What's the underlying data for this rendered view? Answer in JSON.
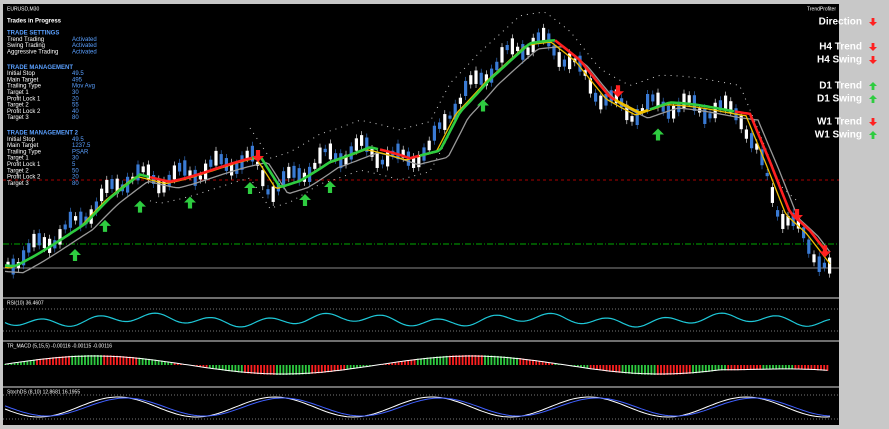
{
  "window": {
    "symbol": "EURUSD,M30",
    "indicator": "TrendProfiter"
  },
  "panel": {
    "title": "Trades in Progress",
    "sections": [
      {
        "heading": "TRADE SETTINGS",
        "rows": [
          [
            "Trend Trading",
            "Activated"
          ],
          [
            "Swing Trading",
            "Activated"
          ],
          [
            "Aggressive Trading",
            "Activated"
          ]
        ]
      },
      {
        "heading": "TRADE MANAGEMENT",
        "rows": [
          [
            "Initial Stop",
            "49.5"
          ],
          [
            "Main Target",
            "495"
          ],
          [
            "Trailing Type",
            "Mov Avg"
          ],
          [
            "Target 1",
            "30"
          ],
          [
            "Profit Lock 1",
            "20"
          ],
          [
            "Target 2",
            "55"
          ],
          [
            "Profit Lock 2",
            "40"
          ],
          [
            "Target 3",
            "80"
          ]
        ]
      },
      {
        "heading": "TRADE MANAGEMENT 2",
        "rows": [
          [
            "Initial Stop",
            "49.5"
          ],
          [
            "Main Target",
            "1237.5"
          ],
          [
            "Trailing Type",
            "PSAR"
          ],
          [
            "Target 1",
            "30"
          ],
          [
            "Profit Lock 1",
            "5"
          ],
          [
            "Target 2",
            "50"
          ],
          [
            "Profit Lock 2",
            "20"
          ],
          [
            "Target 3",
            "80"
          ]
        ]
      }
    ]
  },
  "signals": [
    {
      "label": "Direction",
      "dir": "down"
    },
    {
      "label": "H4 Trend",
      "dir": "down"
    },
    {
      "label": "H4 Swing",
      "dir": "down"
    },
    {
      "label": "D1 Trend",
      "dir": "up"
    },
    {
      "label": "D1 Swing",
      "dir": "up"
    },
    {
      "label": "W1 Trend",
      "dir": "down"
    },
    {
      "label": "W1 Swing",
      "dir": "up"
    }
  ],
  "indicators": {
    "rsi": "RSI(10) 36.4607",
    "macd": "TR_MACD (5,15,5) -0.00116 -0.00115 -0.00116",
    "stoch": "StochDS (8,10) 12.8681 16.1955"
  }
}
